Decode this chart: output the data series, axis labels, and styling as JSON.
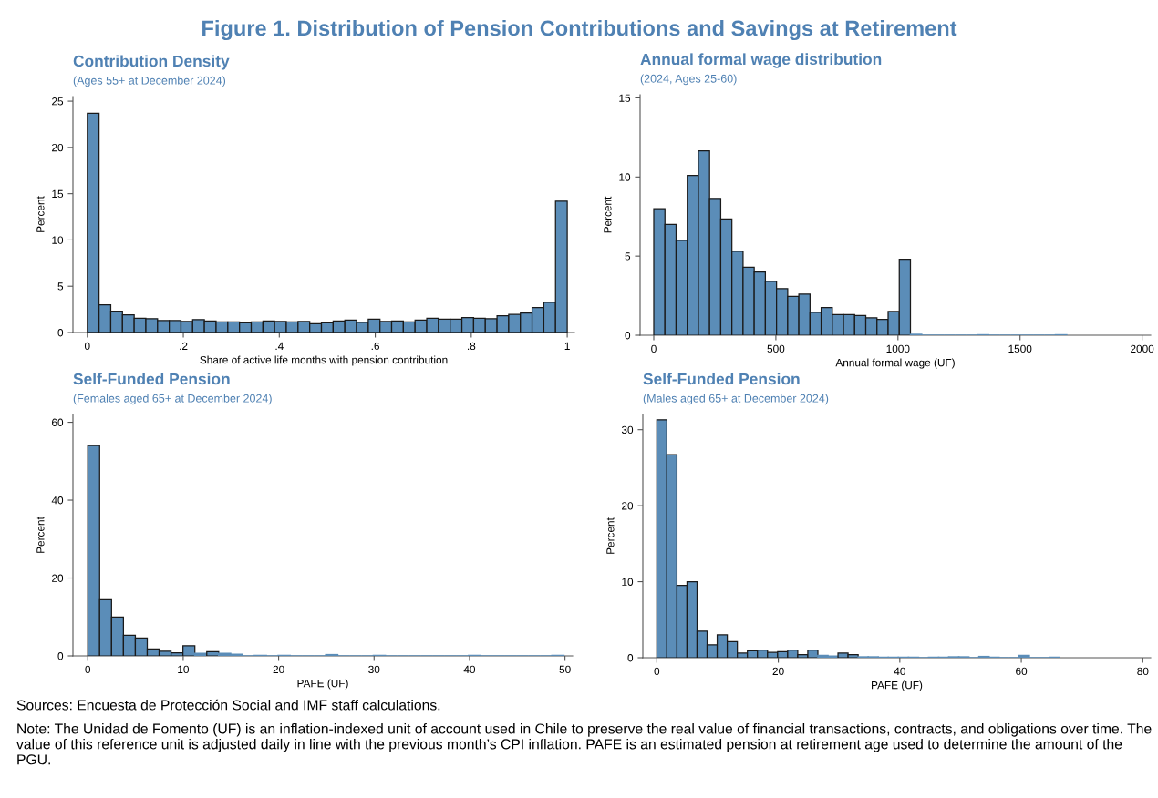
{
  "chart_data": [
    {
      "type": "other",
      "title": "Figure 1. Distribution of Pension Contributions and Savings at Retirement",
      "annotations": [
        "Sources: Encuesta de Protección Social and IMF staff calculations.",
        "Note: The Unidad de Fomento (UF) is an inflation-indexed unit of account used in Chile to preserve the real value of financial transactions, contracts, and obligations over time. The value of this reference unit is adjusted daily in line with the previous month’s CPI inflation. PAFE is an estimated pension at retirement age used to determine the amount of the PGU."
      ]
    },
    {
      "type": "histogram",
      "title": "Contribution Density",
      "subtitle": "(Ages 55+ at December 2024)",
      "xlabel": "Share of active life months with pension contribution",
      "ylabel": "Percent",
      "color": "#5b8db8",
      "bins": [
        0,
        0.0244,
        0.0488,
        0.0732,
        0.0976,
        0.122,
        0.1463,
        0.1707,
        0.1951,
        0.2195,
        0.2439,
        0.2683,
        0.2927,
        0.3171,
        0.3415,
        0.3659,
        0.3902,
        0.4146,
        0.439,
        0.4634,
        0.4878,
        0.5122,
        0.5366,
        0.561,
        0.5854,
        0.6098,
        0.6341,
        0.6585,
        0.6829,
        0.7073,
        0.7317,
        0.7561,
        0.7805,
        0.8049,
        0.8293,
        0.8537,
        0.878,
        0.9024,
        0.9268,
        0.9512,
        0.9756,
        1
      ],
      "values": [
        23.7,
        3.0,
        2.3,
        1.9,
        1.55,
        1.5,
        1.3,
        1.3,
        1.2,
        1.4,
        1.25,
        1.15,
        1.15,
        1.05,
        1.15,
        1.25,
        1.2,
        1.15,
        1.2,
        0.95,
        1.05,
        1.25,
        1.35,
        1.1,
        1.45,
        1.2,
        1.25,
        1.15,
        1.35,
        1.55,
        1.45,
        1.45,
        1.6,
        1.55,
        1.5,
        1.8,
        1.95,
        2.1,
        2.7,
        3.25,
        14.2
      ],
      "xlim": [
        -0.03,
        1.015
      ],
      "ylim": [
        0,
        25.5
      ],
      "xticks": [
        0,
        {
          "value": 0.2,
          "label": ".2"
        },
        {
          "value": 0.4,
          "label": ".4"
        },
        {
          "value": 0.6,
          "label": ".6"
        },
        {
          "value": 0.8,
          "label": ".8"
        },
        1
      ],
      "yticks": [
        0,
        5,
        10,
        15,
        20,
        25
      ],
      "grid": false
    },
    {
      "type": "histogram",
      "title": "Annual formal wage distribution",
      "subtitle": "(2024, Ages 25-60)",
      "xlabel": "Annual formal wage (UF)",
      "ylabel": "Percent",
      "color": "#5b8db8",
      "bins": [
        0,
        45.7,
        91.4,
        137.1,
        182.8,
        228.5,
        274.2,
        319.9,
        365.6,
        411.3,
        457,
        502.7,
        548.4,
        594.1,
        639.8,
        685.5,
        731.2,
        776.9,
        822.6,
        868.3,
        914,
        959.7,
        1005.4,
        1051.1,
        1096.8,
        1142.5,
        1188.2,
        1233.9,
        1279.6,
        1325.3,
        1371,
        1416.7,
        1462.4,
        1508.1,
        1553.8,
        1599.5,
        1645.2,
        1690.9
      ],
      "values": [
        8.0,
        7.0,
        6.0,
        10.1,
        11.65,
        8.65,
        7.35,
        5.3,
        4.3,
        4.0,
        3.4,
        2.95,
        2.45,
        2.6,
        1.45,
        1.75,
        1.3,
        1.3,
        1.25,
        1.1,
        1.0,
        1.5,
        4.8,
        0.05,
        0,
        0,
        0,
        0,
        0,
        0.02,
        0,
        0,
        0,
        0,
        0,
        0,
        0.02
      ],
      "xlim": [
        -56,
        2035
      ],
      "ylim": [
        0,
        15.2
      ],
      "xticks": [
        0,
        500,
        1000,
        1500,
        2000
      ],
      "yticks": [
        0,
        5,
        10,
        15
      ],
      "grid": false
    },
    {
      "type": "histogram",
      "title": "Self-Funded Pension",
      "subtitle": "(Females aged 65+ at December 2024)",
      "xlabel": "PAFE (UF)",
      "ylabel": "Percent",
      "color": "#5b8db8",
      "bins": [
        0,
        1.247,
        2.494,
        3.741,
        4.988,
        6.235,
        7.482,
        8.729,
        9.976,
        11.223,
        12.47,
        13.717,
        14.964,
        16.211,
        17.458,
        18.705,
        19.952,
        21.199,
        22.446,
        23.693,
        24.94,
        26.187,
        27.434,
        28.681,
        29.928,
        31.175,
        32.422,
        33.669,
        34.916,
        36.163,
        37.41,
        38.657,
        39.904,
        41.151,
        42.398,
        43.645,
        44.892,
        46.139,
        47.386,
        48.633,
        49.88
      ],
      "values": [
        54,
        14.4,
        10,
        5.3,
        4.6,
        1.8,
        1.2,
        0.8,
        2.6,
        0.6,
        1.1,
        0.6,
        0.4,
        0,
        0.1,
        0,
        0.1,
        0,
        0,
        0,
        0.3,
        0,
        0,
        0,
        0.1,
        0,
        0,
        0,
        0,
        0,
        0,
        0,
        0.1,
        0,
        0,
        0,
        0,
        0,
        0,
        0.1
      ],
      "xlim": [
        -1.55,
        50.8
      ],
      "ylim": [
        0,
        62
      ],
      "xticks": [
        0,
        10,
        20,
        30,
        40,
        50
      ],
      "yticks": [
        0,
        20,
        40,
        60
      ],
      "grid": false
    },
    {
      "type": "histogram",
      "title": "Self-Funded Pension",
      "subtitle": "(Males aged 65+ at December 2024)",
      "xlabel": "PAFE (UF)",
      "ylabel": "Percent",
      "color": "#5b8db8",
      "bins": [
        0,
        1.657,
        3.314,
        4.971,
        6.628,
        8.285,
        9.942,
        11.599,
        13.256,
        14.913,
        16.57,
        18.227,
        19.884,
        21.541,
        23.198,
        24.855,
        26.512,
        28.169,
        29.826,
        31.483,
        33.14,
        34.797,
        36.454,
        38.111,
        39.768,
        41.425,
        43.082,
        44.739,
        46.396,
        48.053,
        49.71,
        51.367,
        53.024,
        54.681,
        56.338,
        57.995,
        59.652,
        61.309,
        62.966,
        64.623,
        66.28
      ],
      "values": [
        31.3,
        26.7,
        9.5,
        10.0,
        3.5,
        1.7,
        3.0,
        2.1,
        0.6,
        0.9,
        1.0,
        0.7,
        0.8,
        1.0,
        0.4,
        1.0,
        0.3,
        0.2,
        0.6,
        0.4,
        0.1,
        0.1,
        0.05,
        0.05,
        0.05,
        0.05,
        0,
        0.05,
        0.05,
        0.1,
        0.1,
        0,
        0.15,
        0.05,
        0,
        0,
        0.3,
        0,
        0,
        0.05
      ],
      "xlim": [
        -2.3,
        81.3
      ],
      "ylim": [
        0,
        32
      ],
      "xticks": [
        0,
        20,
        40,
        60,
        80
      ],
      "yticks": [
        0,
        10,
        20,
        30
      ],
      "grid": false
    }
  ]
}
